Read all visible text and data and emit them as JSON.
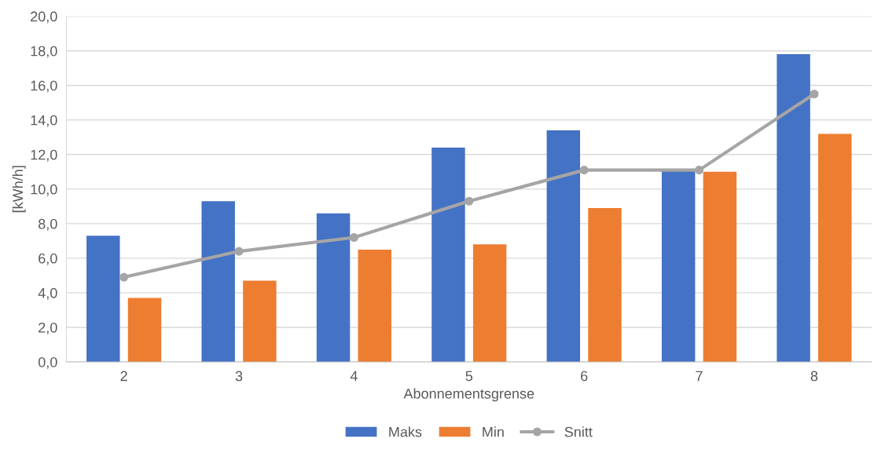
{
  "chart_data": {
    "type": "bar",
    "xlabel": "Abonnementsgrense",
    "ylabel": "[kWh/h]",
    "categories": [
      "2",
      "3",
      "4",
      "5",
      "6",
      "7",
      "8"
    ],
    "series": [
      {
        "name": "Maks",
        "color": "#4472c4",
        "values": [
          7.3,
          9.3,
          8.6,
          12.4,
          13.4,
          11.1,
          17.8
        ]
      },
      {
        "name": "Min",
        "color": "#ed7d31",
        "values": [
          3.7,
          4.7,
          6.5,
          6.8,
          8.9,
          11.0,
          13.2
        ]
      },
      {
        "name": "Snitt",
        "type": "line",
        "color": "#a5a5a5",
        "marker": "circle",
        "values": [
          4.9,
          6.4,
          7.2,
          9.3,
          11.1,
          11.1,
          15.5
        ]
      }
    ],
    "ylim": [
      0,
      20
    ],
    "yticks": [
      {
        "value": 0,
        "label": "0,0"
      },
      {
        "value": 2,
        "label": "2,0"
      },
      {
        "value": 4,
        "label": "4,0"
      },
      {
        "value": 6,
        "label": "6,0"
      },
      {
        "value": 8,
        "label": "8,0"
      },
      {
        "value": 10,
        "label": "10,0"
      },
      {
        "value": 12,
        "label": "12,0"
      },
      {
        "value": 14,
        "label": "14,0"
      },
      {
        "value": 16,
        "label": "16,0"
      },
      {
        "value": 18,
        "label": "18,0"
      },
      {
        "value": 20,
        "label": "20,0"
      }
    ],
    "grid": "y",
    "legend": "bottom"
  }
}
